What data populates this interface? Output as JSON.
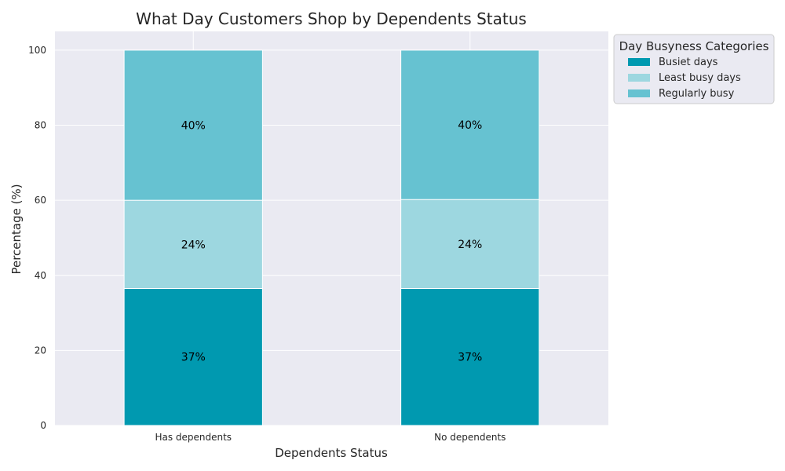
{
  "chart_data": {
    "type": "bar",
    "stacked": true,
    "title": "What Day Customers Shop by Dependents Status",
    "xlabel": "Dependents Status",
    "ylabel": "Percentage (%)",
    "categories": [
      "Has dependents",
      "No dependents"
    ],
    "ylim": [
      0,
      105
    ],
    "yticks": [
      "0",
      "20",
      "40",
      "60",
      "80",
      "100"
    ],
    "grid": true,
    "legend": {
      "title": "Day Busyness Categories",
      "placement": "outside-top-right"
    },
    "series": [
      {
        "name": "Busiet days",
        "color": "#0099b0",
        "values": [
          36.5,
          36.5
        ],
        "labels": [
          "37%",
          "37%"
        ]
      },
      {
        "name": "Least busy days",
        "color": "#9dd7e0",
        "values": [
          23.5,
          23.7
        ],
        "labels": [
          "24%",
          "24%"
        ]
      },
      {
        "name": "Regularly busy",
        "color": "#66c2d1",
        "values": [
          40.0,
          39.8
        ],
        "labels": [
          "40%",
          "40%"
        ]
      }
    ],
    "background": "#eaeaf2"
  }
}
